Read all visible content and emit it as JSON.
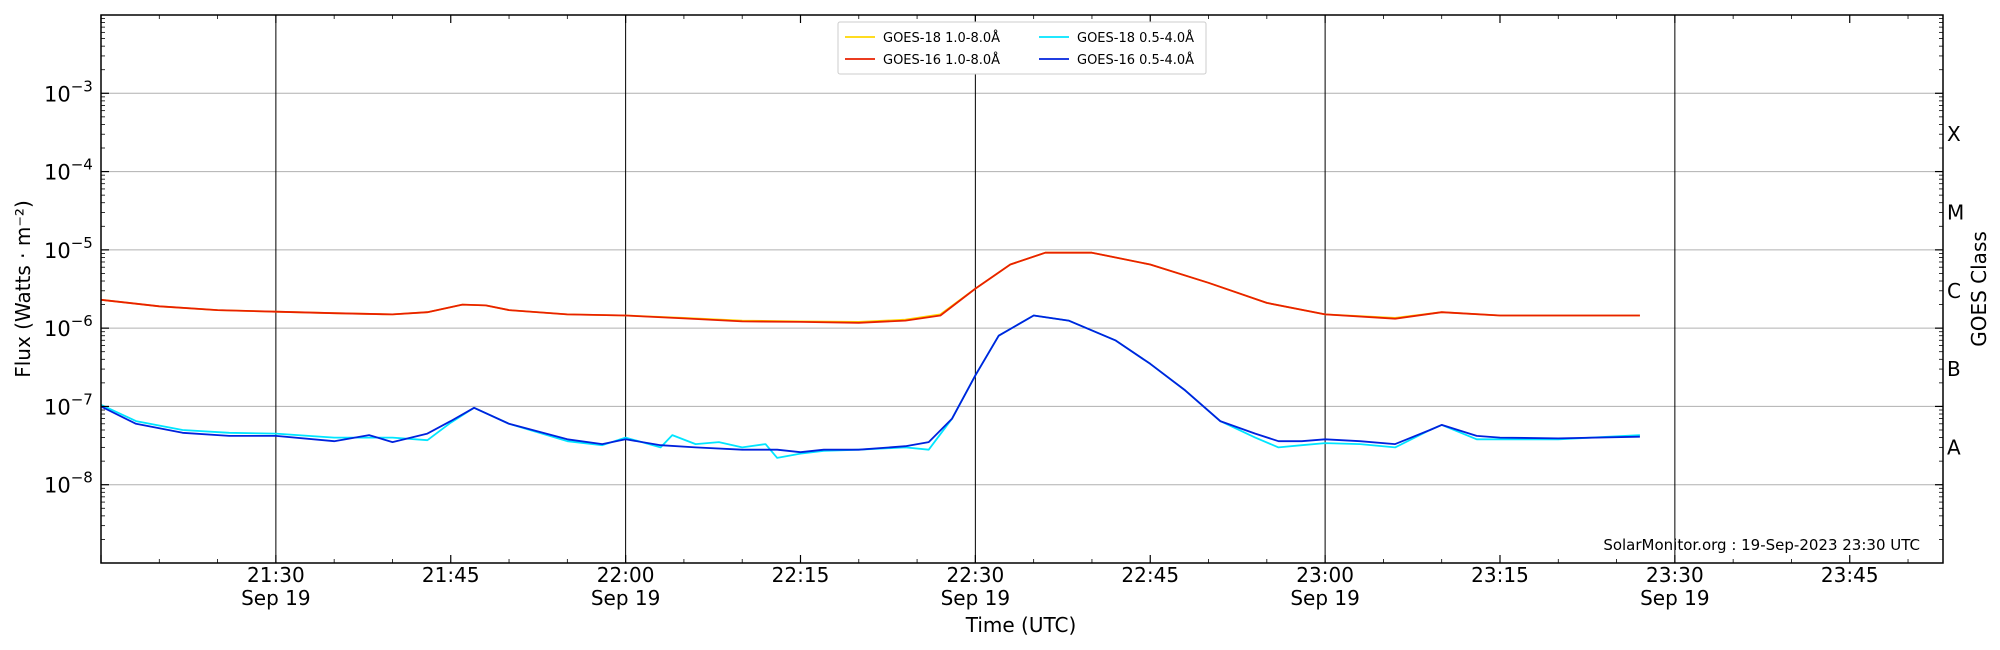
{
  "chart_data": {
    "type": "line",
    "xlabel": "Time (UTC)",
    "ylabel": "Flux (Watts · m⁻²)",
    "ylabel_right": "GOES Class",
    "y_scale": "log",
    "ylim": [
      1e-09,
      0.01
    ],
    "xlim": [
      "2023-09-19 21:15",
      "2023-09-19 23:53"
    ],
    "grid": "horizontal at decades; vertical lines every 30 min",
    "legend_placement": "top-center",
    "annotation": "SolarMonitor.org : 19-Sep-2023 23:30 UTC",
    "y_ticks": [
      {
        "value": 1e-08,
        "base": "10",
        "exp": "−8"
      },
      {
        "value": 1e-07,
        "base": "10",
        "exp": "−7"
      },
      {
        "value": 1e-06,
        "base": "10",
        "exp": "−6"
      },
      {
        "value": 1e-05,
        "base": "10",
        "exp": "−5"
      },
      {
        "value": 0.0001,
        "base": "10",
        "exp": "−4"
      },
      {
        "value": 0.001,
        "base": "10",
        "exp": "−3"
      }
    ],
    "x_ticks": [
      {
        "time": "21:30",
        "label": "21:30",
        "date": "Sep 19"
      },
      {
        "time": "21:45",
        "label": "21:45",
        "date": ""
      },
      {
        "time": "22:00",
        "label": "22:00",
        "date": "Sep 19"
      },
      {
        "time": "22:15",
        "label": "22:15",
        "date": ""
      },
      {
        "time": "22:30",
        "label": "22:30",
        "date": "Sep 19"
      },
      {
        "time": "22:45",
        "label": "22:45",
        "date": ""
      },
      {
        "time": "23:00",
        "label": "23:00",
        "date": "Sep 19"
      },
      {
        "time": "23:15",
        "label": "23:15",
        "date": ""
      },
      {
        "time": "23:30",
        "label": "23:30",
        "date": "Sep 19"
      },
      {
        "time": "23:45",
        "label": "23:45",
        "date": ""
      }
    ],
    "goes_classes": [
      {
        "label": "A",
        "value": 3e-08
      },
      {
        "label": "B",
        "value": 3e-07
      },
      {
        "label": "C",
        "value": 3e-06
      },
      {
        "label": "M",
        "value": 3e-05
      },
      {
        "label": "X",
        "value": 0.0003
      }
    ],
    "series": [
      {
        "name": "GOES-18 1.0-8.0Å",
        "color": "#ffd700",
        "points": [
          [
            "21:15",
            2.3e-06
          ],
          [
            "21:20",
            1.9e-06
          ],
          [
            "21:25",
            1.7e-06
          ],
          [
            "21:30",
            1.62e-06
          ],
          [
            "21:35",
            1.55e-06
          ],
          [
            "21:40",
            1.5e-06
          ],
          [
            "21:43",
            1.6e-06
          ],
          [
            "21:46",
            2e-06
          ],
          [
            "21:48",
            1.95e-06
          ],
          [
            "21:50",
            1.7e-06
          ],
          [
            "21:55",
            1.5e-06
          ],
          [
            "22:00",
            1.45e-06
          ],
          [
            "22:05",
            1.35e-06
          ],
          [
            "22:10",
            1.25e-06
          ],
          [
            "22:15",
            1.22e-06
          ],
          [
            "22:20",
            1.2e-06
          ],
          [
            "22:24",
            1.28e-06
          ],
          [
            "22:27",
            1.5e-06
          ],
          [
            "22:30",
            3.2e-06
          ],
          [
            "22:33",
            6.5e-06
          ],
          [
            "22:36",
            9.2e-06
          ],
          [
            "22:40",
            9.2e-06
          ],
          [
            "22:45",
            6.5e-06
          ],
          [
            "22:50",
            3.8e-06
          ],
          [
            "22:55",
            2.1e-06
          ],
          [
            "23:00",
            1.5e-06
          ],
          [
            "23:06",
            1.35e-06
          ],
          [
            "23:10",
            1.6e-06
          ],
          [
            "23:15",
            1.45e-06
          ],
          [
            "23:20",
            1.45e-06
          ],
          [
            "23:27",
            1.45e-06
          ]
        ]
      },
      {
        "name": "GOES-16 1.0-8.0Å",
        "color": "#e82000",
        "points": [
          [
            "21:15",
            2.3e-06
          ],
          [
            "21:20",
            1.9e-06
          ],
          [
            "21:25",
            1.7e-06
          ],
          [
            "21:30",
            1.62e-06
          ],
          [
            "21:35",
            1.55e-06
          ],
          [
            "21:40",
            1.5e-06
          ],
          [
            "21:43",
            1.6e-06
          ],
          [
            "21:46",
            2e-06
          ],
          [
            "21:48",
            1.95e-06
          ],
          [
            "21:50",
            1.7e-06
          ],
          [
            "21:55",
            1.5e-06
          ],
          [
            "22:00",
            1.45e-06
          ],
          [
            "22:05",
            1.33e-06
          ],
          [
            "22:10",
            1.22e-06
          ],
          [
            "22:15",
            1.2e-06
          ],
          [
            "22:20",
            1.17e-06
          ],
          [
            "22:24",
            1.25e-06
          ],
          [
            "22:27",
            1.45e-06
          ],
          [
            "22:30",
            3.2e-06
          ],
          [
            "22:33",
            6.5e-06
          ],
          [
            "22:36",
            9.2e-06
          ],
          [
            "22:40",
            9.2e-06
          ],
          [
            "22:45",
            6.5e-06
          ],
          [
            "22:50",
            3.8e-06
          ],
          [
            "22:55",
            2.1e-06
          ],
          [
            "23:00",
            1.5e-06
          ],
          [
            "23:06",
            1.32e-06
          ],
          [
            "23:10",
            1.6e-06
          ],
          [
            "23:15",
            1.45e-06
          ],
          [
            "23:20",
            1.45e-06
          ],
          [
            "23:27",
            1.45e-06
          ]
        ]
      },
      {
        "name": "GOES-18 0.5-4.0Å",
        "color": "#00e5ff",
        "points": [
          [
            "21:15",
            1.05e-07
          ],
          [
            "21:18",
            6.5e-08
          ],
          [
            "21:22",
            5e-08
          ],
          [
            "21:26",
            4.6e-08
          ],
          [
            "21:30",
            4.5e-08
          ],
          [
            "21:35",
            4e-08
          ],
          [
            "21:40",
            4e-08
          ],
          [
            "21:43",
            3.7e-08
          ],
          [
            "21:45",
            6.2e-08
          ],
          [
            "21:47",
            9.6e-08
          ],
          [
            "21:50",
            6e-08
          ],
          [
            "21:55",
            3.6e-08
          ],
          [
            "21:58",
            3.2e-08
          ],
          [
            "22:00",
            4e-08
          ],
          [
            "22:03",
            3e-08
          ],
          [
            "22:04",
            4.3e-08
          ],
          [
            "22:06",
            3.3e-08
          ],
          [
            "22:08",
            3.5e-08
          ],
          [
            "22:10",
            3e-08
          ],
          [
            "22:12",
            3.3e-08
          ],
          [
            "22:13",
            2.2e-08
          ],
          [
            "22:15",
            2.5e-08
          ],
          [
            "22:17",
            2.7e-08
          ],
          [
            "22:20",
            2.8e-08
          ],
          [
            "22:24",
            3e-08
          ],
          [
            "22:26",
            2.8e-08
          ],
          [
            "22:28",
            7e-08
          ],
          [
            "22:30",
            2.5e-07
          ],
          [
            "22:32",
            8e-07
          ],
          [
            "22:35",
            1.45e-06
          ],
          [
            "22:38",
            1.25e-06
          ],
          [
            "22:42",
            7e-07
          ],
          [
            "22:45",
            3.5e-07
          ],
          [
            "22:48",
            1.6e-07
          ],
          [
            "22:51",
            6.5e-08
          ],
          [
            "22:54",
            4e-08
          ],
          [
            "22:56",
            3e-08
          ],
          [
            "22:58",
            3.2e-08
          ],
          [
            "23:00",
            3.4e-08
          ],
          [
            "23:03",
            3.3e-08
          ],
          [
            "23:06",
            3e-08
          ],
          [
            "23:09",
            5e-08
          ],
          [
            "23:10",
            5.8e-08
          ],
          [
            "23:13",
            3.8e-08
          ],
          [
            "23:15",
            3.8e-08
          ],
          [
            "23:20",
            3.8e-08
          ],
          [
            "23:27",
            4.3e-08
          ]
        ]
      },
      {
        "name": "GOES-16 0.5-4.0Å",
        "color": "#0022dd",
        "points": [
          [
            "21:15",
            1e-07
          ],
          [
            "21:18",
            6e-08
          ],
          [
            "21:22",
            4.6e-08
          ],
          [
            "21:26",
            4.2e-08
          ],
          [
            "21:30",
            4.2e-08
          ],
          [
            "21:35",
            3.6e-08
          ],
          [
            "21:38",
            4.3e-08
          ],
          [
            "21:40",
            3.5e-08
          ],
          [
            "21:43",
            4.5e-08
          ],
          [
            "21:45",
            6.5e-08
          ],
          [
            "21:47",
            9.6e-08
          ],
          [
            "21:50",
            6e-08
          ],
          [
            "21:55",
            3.8e-08
          ],
          [
            "21:58",
            3.3e-08
          ],
          [
            "22:00",
            3.8e-08
          ],
          [
            "22:03",
            3.2e-08
          ],
          [
            "22:06",
            3e-08
          ],
          [
            "22:10",
            2.8e-08
          ],
          [
            "22:13",
            2.8e-08
          ],
          [
            "22:15",
            2.6e-08
          ],
          [
            "22:17",
            2.8e-08
          ],
          [
            "22:20",
            2.8e-08
          ],
          [
            "22:24",
            3.1e-08
          ],
          [
            "22:26",
            3.5e-08
          ],
          [
            "22:28",
            7e-08
          ],
          [
            "22:30",
            2.5e-07
          ],
          [
            "22:32",
            8e-07
          ],
          [
            "22:35",
            1.45e-06
          ],
          [
            "22:38",
            1.25e-06
          ],
          [
            "22:42",
            7e-07
          ],
          [
            "22:45",
            3.5e-07
          ],
          [
            "22:48",
            1.6e-07
          ],
          [
            "22:51",
            6.5e-08
          ],
          [
            "22:54",
            4.5e-08
          ],
          [
            "22:56",
            3.6e-08
          ],
          [
            "22:58",
            3.6e-08
          ],
          [
            "23:00",
            3.8e-08
          ],
          [
            "23:03",
            3.6e-08
          ],
          [
            "23:06",
            3.3e-08
          ],
          [
            "23:09",
            5e-08
          ],
          [
            "23:10",
            5.8e-08
          ],
          [
            "23:13",
            4.2e-08
          ],
          [
            "23:15",
            4e-08
          ],
          [
            "23:20",
            3.9e-08
          ],
          [
            "23:27",
            4.1e-08
          ]
        ]
      }
    ]
  }
}
